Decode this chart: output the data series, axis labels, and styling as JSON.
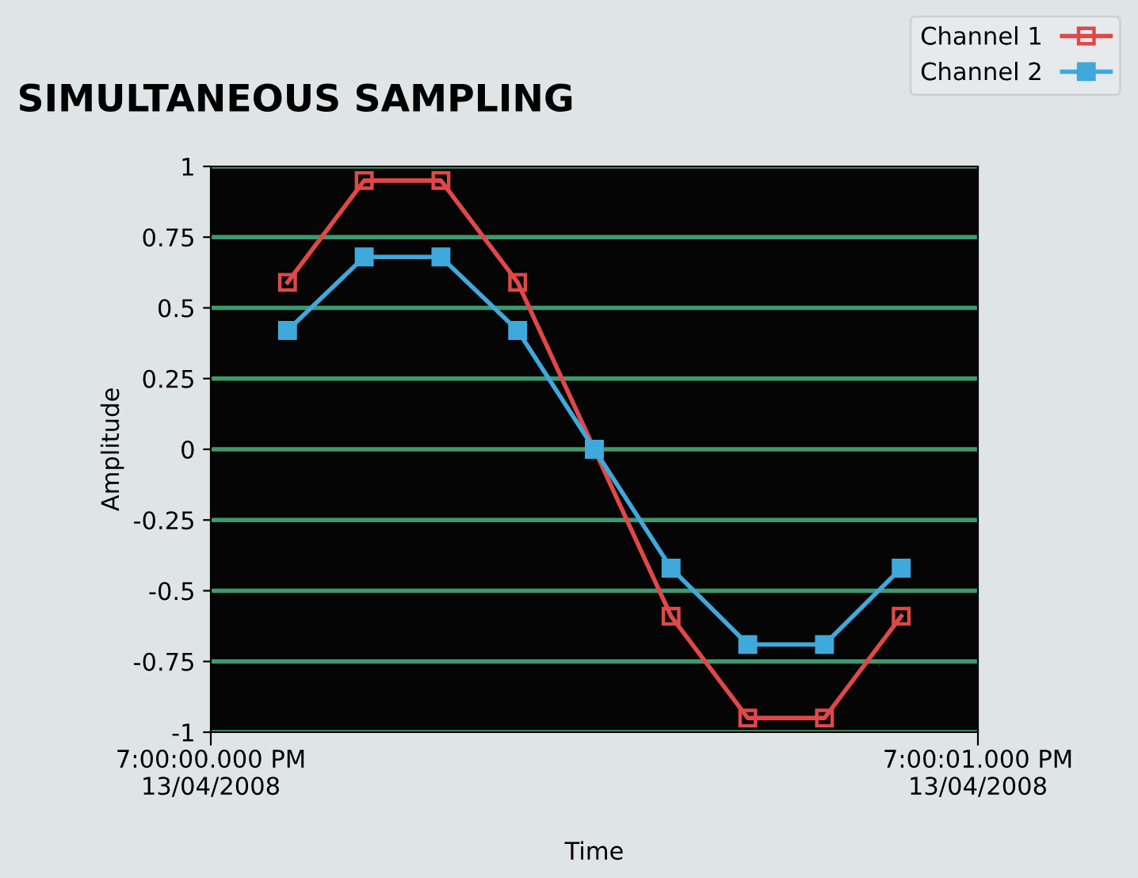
{
  "chart_data": {
    "type": "line",
    "title": "SIMULTANEOUS SAMPLING",
    "xlabel": "Time",
    "ylabel": "Amplitude",
    "categories": [
      null,
      null,
      null,
      null,
      null,
      null,
      null,
      null,
      null
    ],
    "annotations": [
      "7:00:00.000 PM\n13/04/2008",
      "7:00:01.000 PM\n13/04/2008"
    ],
    "series": [
      {
        "name": "Channel 1",
        "color": "#e04848",
        "values": [
          0.59,
          0.95,
          0.95,
          0.59,
          0,
          -0.59,
          -0.95,
          -0.95,
          -0.59
        ]
      },
      {
        "name": "Channel 2",
        "color": "#3fa9dc",
        "values": [
          0.42,
          0.68,
          0.68,
          0.42,
          0,
          -0.42,
          -0.69,
          -0.69,
          -0.42
        ]
      }
    ],
    "ylim": [
      -1,
      1
    ],
    "yticks": [
      -1,
      -0.75,
      -0.5,
      -0.25,
      0,
      0.25,
      0.5,
      0.75,
      1
    ],
    "grid": "y",
    "legend": "top right",
    "marker": "square",
    "line_style": "solid"
  }
}
